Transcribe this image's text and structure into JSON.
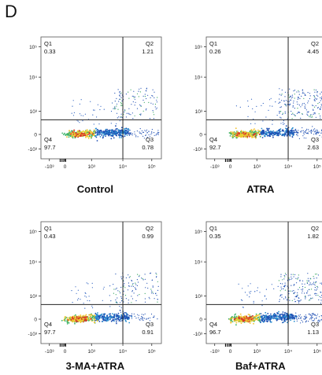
{
  "panel_letter": "D",
  "chart_data": [
    {
      "type": "scatter",
      "title": "Control",
      "quadrants": {
        "Q1": {
          "label": "Q1",
          "value": "0.33"
        },
        "Q2": {
          "label": "Q2",
          "value": "1.21"
        },
        "Q3": {
          "label": "Q3",
          "value": "0.78"
        },
        "Q4": {
          "label": "Q4",
          "value": "97.7"
        }
      },
      "x_ticks": [
        "-10³",
        "0",
        "10³",
        "10⁴",
        "10⁵"
      ],
      "y_ticks": [
        "10⁵",
        "10⁴",
        "10³",
        "0",
        "-10³"
      ]
    },
    {
      "type": "scatter",
      "title": "ATRA",
      "quadrants": {
        "Q1": {
          "label": "Q1",
          "value": "0.26"
        },
        "Q2": {
          "label": "Q2",
          "value": "4.45"
        },
        "Q3": {
          "label": "Q3",
          "value": "2.63"
        },
        "Q4": {
          "label": "Q4",
          "value": "92.7"
        }
      },
      "x_ticks": [
        "-10³",
        "0",
        "10³",
        "10⁴",
        "10⁵"
      ],
      "y_ticks": [
        "10⁵",
        "10⁴",
        "10³",
        "0",
        "-10³"
      ]
    },
    {
      "type": "scatter",
      "title": "3-MA+ATRA",
      "quadrants": {
        "Q1": {
          "label": "Q1",
          "value": "0.43"
        },
        "Q2": {
          "label": "Q2",
          "value": "0.99"
        },
        "Q3": {
          "label": "Q3",
          "value": "0.91"
        },
        "Q4": {
          "label": "Q4",
          "value": "97.7"
        }
      },
      "x_ticks": [
        "-10³",
        "0",
        "10³",
        "10⁴",
        "10⁵"
      ],
      "y_ticks": [
        "10⁵",
        "10⁴",
        "10³",
        "0",
        "-10³"
      ]
    },
    {
      "type": "scatter",
      "title": "Baf+ATRA",
      "quadrants": {
        "Q1": {
          "label": "Q1",
          "value": "0.35"
        },
        "Q2": {
          "label": "Q2",
          "value": "1.82"
        },
        "Q3": {
          "label": "Q3",
          "value": "1.13"
        },
        "Q4": {
          "label": "Q4",
          "value": "96.7"
        }
      },
      "x_ticks": [
        "-10³",
        "0",
        "10³",
        "10⁴",
        "10⁵"
      ],
      "y_ticks": [
        "10⁵",
        "10⁴",
        "10³",
        "0",
        "-10³"
      ]
    }
  ]
}
